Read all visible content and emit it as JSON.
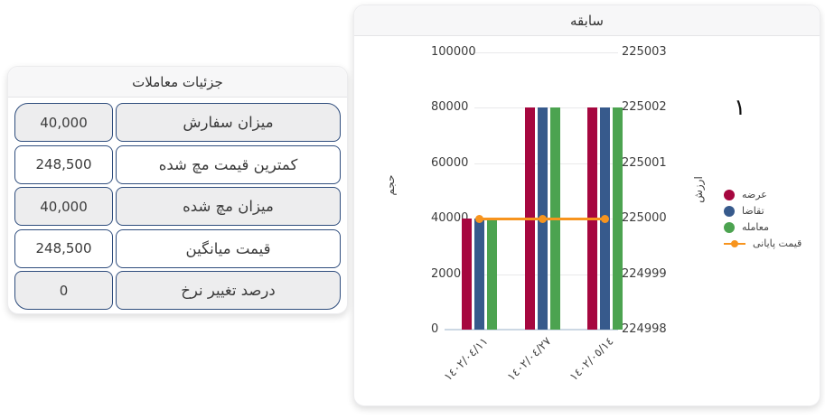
{
  "details_card": {
    "title": "جزئیات معاملات",
    "rows": [
      {
        "label": "میزان سفارش",
        "value": "40,000"
      },
      {
        "label": "کمترین قیمت مچ شده",
        "value": "248,500"
      },
      {
        "label": "میزان مچ شده",
        "value": "40,000"
      },
      {
        "label": "قیمت میانگین",
        "value": "248,500"
      },
      {
        "label": "درصد تغییر نرخ",
        "value": "0"
      }
    ]
  },
  "history_card": {
    "title": "سابقه",
    "stray_glyph": "۱"
  },
  "chart_data": {
    "type": "bar",
    "title": "سابقه",
    "categories": [
      "١٤٠٢/٠٤/١١",
      "١٤٠٢/٠٤/٢٧",
      "١٤٠٢/٠٥/١٤"
    ],
    "series": [
      {
        "name": "عرضه",
        "type": "bar",
        "axis": "left",
        "color": "#a6073f",
        "values": [
          40000,
          80000,
          80000
        ]
      },
      {
        "name": "تقاضا",
        "type": "bar",
        "axis": "left",
        "color": "#375a8c",
        "values": [
          40000,
          80000,
          80000
        ]
      },
      {
        "name": "معامله",
        "type": "bar",
        "axis": "left",
        "color": "#4ca350",
        "values": [
          40000,
          80000,
          80000
        ]
      },
      {
        "name": "قیمت پایانی",
        "type": "line",
        "axis": "right",
        "color": "#f7941e",
        "values": [
          225000,
          225000,
          225000
        ]
      }
    ],
    "left_axis": {
      "title": "حجم",
      "range": [
        0,
        100000
      ],
      "ticks": [
        0,
        20000,
        40000,
        60000,
        80000,
        100000
      ]
    },
    "right_axis": {
      "title": "ارزش",
      "range": [
        224998,
        225003
      ],
      "ticks": [
        224998,
        224999,
        225000,
        225001,
        225002,
        225003
      ]
    },
    "grid": true,
    "legend_position": "right"
  }
}
